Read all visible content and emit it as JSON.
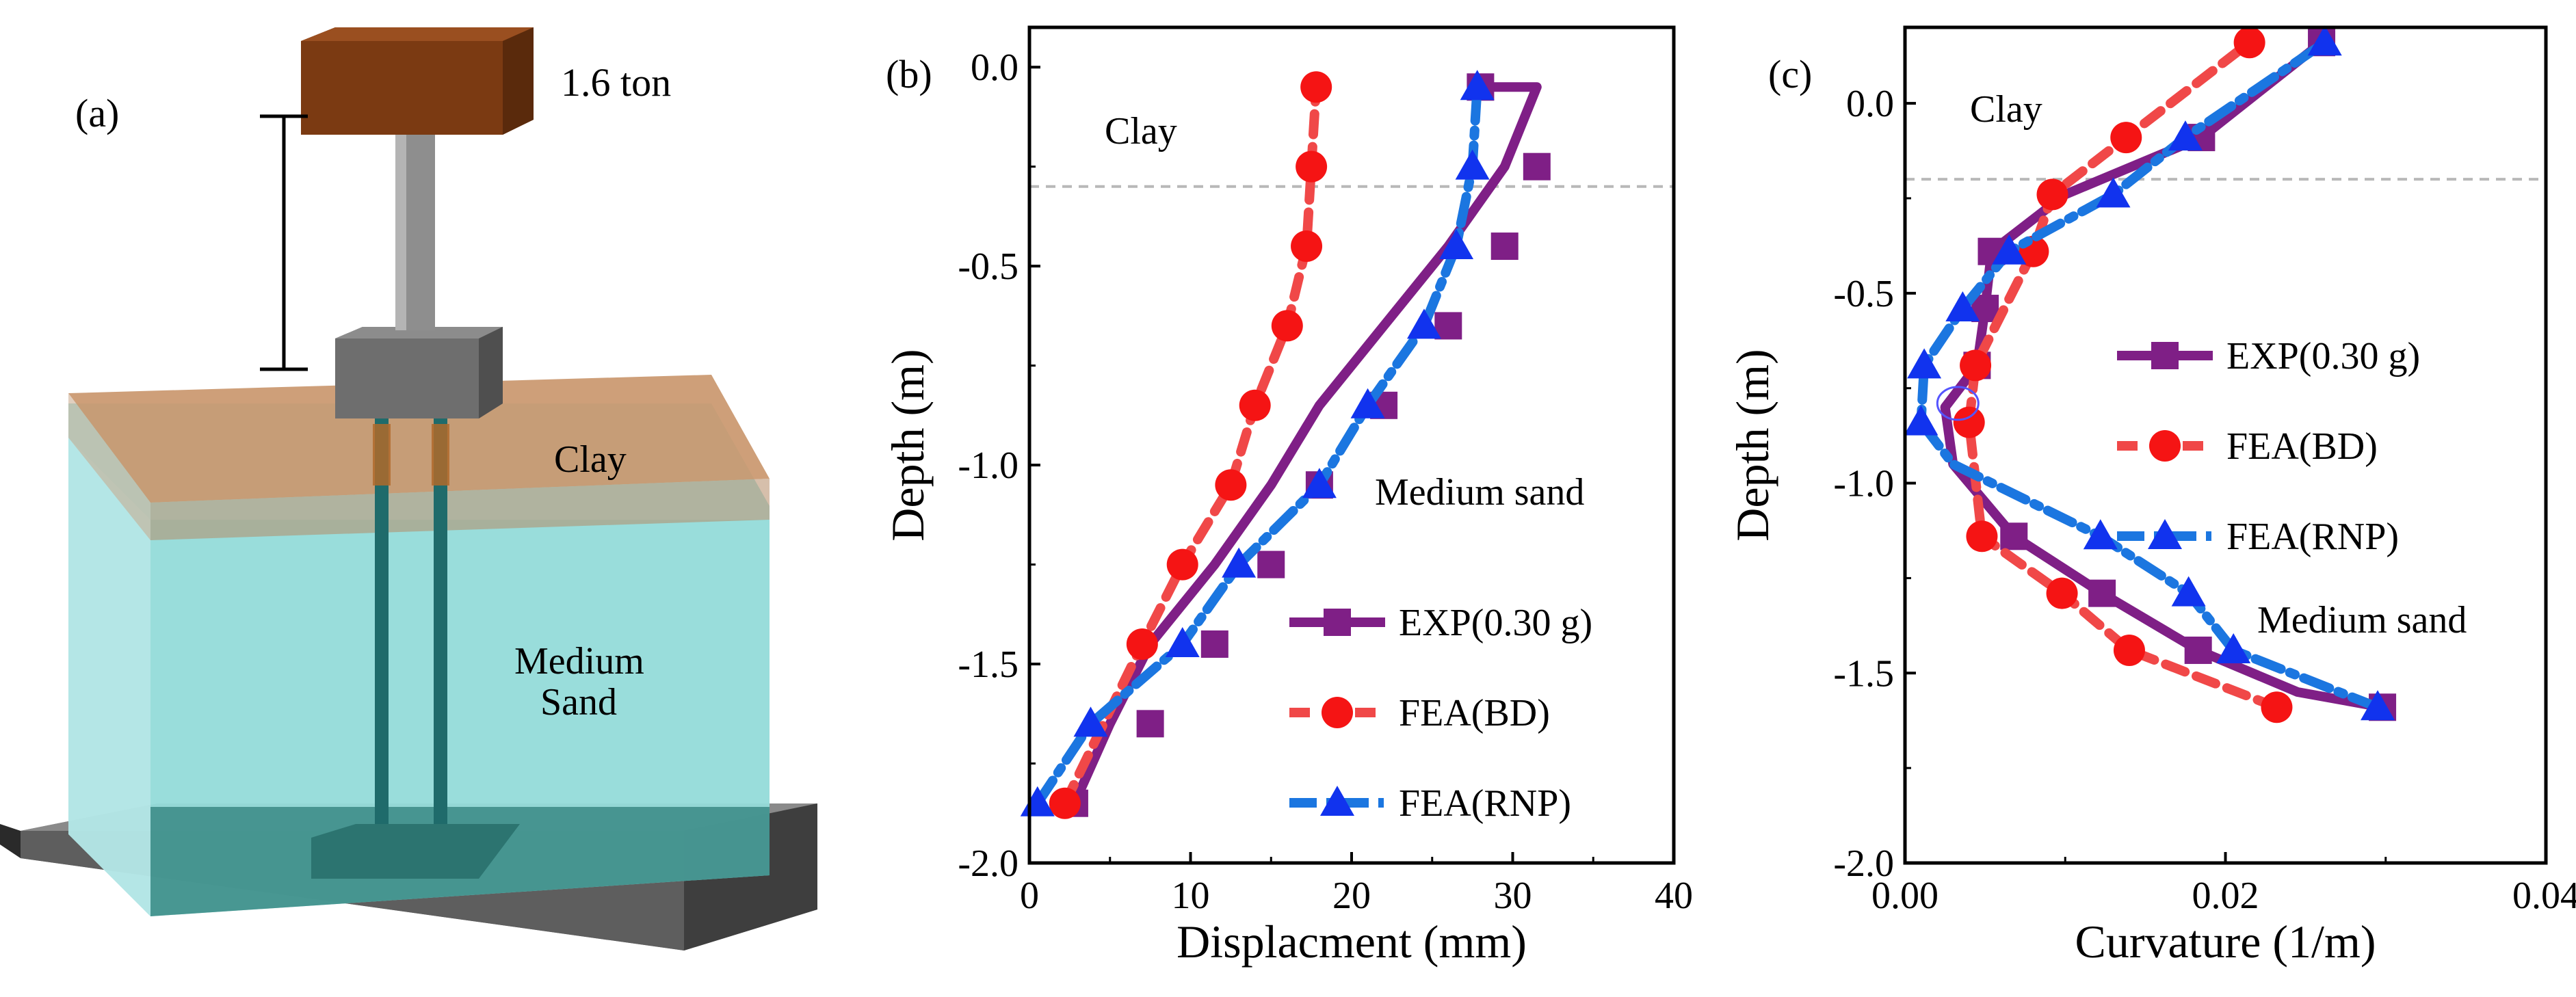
{
  "figure": {
    "panel_a": {
      "label": "(a)",
      "load_label": "1.6 ton",
      "clay_label": "Clay",
      "sand_label_line1": "Medium",
      "sand_label_line2": "Sand"
    }
  },
  "colors": {
    "exp": "#7f1f86",
    "bd": "#f04848",
    "rnp": "#1b76e0",
    "bd_marker": "#f51414",
    "rnp_marker": "#1133ee",
    "clay_layer": "#c9956a",
    "sand_layer": "#98dcdc",
    "mass": "#7b3a12",
    "base": "#5a5a5a"
  },
  "chart_data": [
    {
      "type": "line",
      "panel_label": "(b)",
      "xlabel": "Displacment (mm)",
      "ylabel": "Depth (m)",
      "xlim": [
        0,
        40
      ],
      "ylim": [
        -2.0,
        0.1
      ],
      "xticks": [
        0,
        10,
        20,
        30,
        40
      ],
      "yticks": [
        0.0,
        -0.5,
        -1.0,
        -1.5,
        -2.0
      ],
      "xtick_labels": [
        "0",
        "10",
        "20",
        "30",
        "40"
      ],
      "ytick_labels": [
        "0.0",
        "-0.5",
        "-1.0",
        "-1.5",
        "-2.0"
      ],
      "boundary_depth": -0.3,
      "region_labels": [
        "Clay",
        "Medium sand"
      ],
      "legend": [
        "EXP(0.30 g)",
        "FEA(BD)",
        "FEA(RNP)"
      ],
      "series": [
        {
          "name": "EXP(0.30 g)",
          "marker": "square",
          "x": [
            2.8,
            5.0,
            7.5,
            11.5,
            15.0,
            18.0,
            22.0,
            26.0,
            29.5,
            31.5,
            28.0
          ],
          "y": [
            -1.85,
            -1.65,
            -1.45,
            -1.25,
            -1.05,
            -0.85,
            -0.65,
            -0.45,
            -0.25,
            -0.05,
            -0.05
          ],
          "marker_x": [
            2.8,
            7.5,
            11.5,
            15.0,
            18.0,
            22.0,
            26.0,
            29.5,
            31.5,
            28.0
          ],
          "marker_y": [
            -1.85,
            -1.65,
            -1.45,
            -1.25,
            -1.05,
            -0.85,
            -0.65,
            -0.45,
            -0.25,
            -0.05
          ]
        },
        {
          "name": "FEA(BD)",
          "marker": "circle",
          "x": [
            2.2,
            7.0,
            9.5,
            12.5,
            14.0,
            16.0,
            17.2,
            17.5,
            17.8
          ],
          "y": [
            -1.85,
            -1.45,
            -1.25,
            -1.05,
            -0.85,
            -0.65,
            -0.45,
            -0.25,
            -0.05
          ],
          "marker_x": [
            2.2,
            7.0,
            9.5,
            12.5,
            14.0,
            16.0,
            17.2,
            17.5,
            17.8
          ],
          "marker_y": [
            -1.85,
            -1.45,
            -1.25,
            -1.05,
            -0.85,
            -0.65,
            -0.45,
            -0.25,
            -0.05
          ]
        },
        {
          "name": "FEA(RNP)",
          "marker": "triangle",
          "x": [
            0.5,
            3.8,
            9.5,
            13.0,
            18.0,
            21.0,
            24.5,
            26.5,
            27.5,
            27.8
          ],
          "y": [
            -1.85,
            -1.65,
            -1.45,
            -1.25,
            -1.05,
            -0.85,
            -0.65,
            -0.45,
            -0.25,
            -0.05
          ],
          "marker_x": [
            0.5,
            3.8,
            9.5,
            13.0,
            18.0,
            21.0,
            24.5,
            26.5,
            27.5,
            27.8
          ],
          "marker_y": [
            -1.85,
            -1.65,
            -1.45,
            -1.25,
            -1.05,
            -0.85,
            -0.65,
            -0.45,
            -0.25,
            -0.05
          ]
        }
      ]
    },
    {
      "type": "line",
      "panel_label": "(c)",
      "xlabel": "Curvature (1/m)",
      "ylabel": "Depth (m)",
      "xlim": [
        0.0,
        0.04
      ],
      "ylim": [
        -2.0,
        0.2
      ],
      "xticks": [
        0.0,
        0.02,
        0.04
      ],
      "yticks": [
        0.0,
        -0.5,
        -1.0,
        -1.5,
        -2.0
      ],
      "xtick_labels": [
        "0.00",
        "0.02",
        "0.04"
      ],
      "ytick_labels": [
        "0.0",
        "-0.5",
        "-1.0",
        "-1.5",
        "-2.0"
      ],
      "boundary_depth": -0.2,
      "region_labels": [
        "Clay",
        "Medium sand"
      ],
      "legend": [
        "EXP(0.30 g)",
        "FEA(BD)",
        "FEA(RNP)"
      ],
      "series": [
        {
          "name": "EXP(0.30 g)",
          "marker": "square",
          "x": [
            0.0298,
            0.0245,
            0.0183,
            0.0123,
            0.0068,
            0.003,
            0.0025,
            0.0045,
            0.005,
            0.0054,
            0.01,
            0.0185,
            0.026
          ],
          "y": [
            -1.59,
            -1.55,
            -1.44,
            -1.29,
            -1.14,
            -0.95,
            -0.8,
            -0.69,
            -0.54,
            -0.39,
            -0.24,
            -0.09,
            0.16
          ],
          "marker_x": [
            0.0298,
            0.0183,
            0.0123,
            0.0068,
            0.0045,
            0.005,
            0.0054,
            0.0185,
            0.026
          ],
          "marker_y": [
            -1.59,
            -1.44,
            -1.29,
            -1.14,
            -0.69,
            -0.54,
            -0.39,
            -0.09,
            0.16
          ]
        },
        {
          "name": "FEA(BD)",
          "marker": "circle",
          "x": [
            0.0232,
            0.014,
            0.0098,
            0.0048,
            0.004,
            0.0044,
            0.008,
            0.0092,
            0.0138,
            0.0215
          ],
          "y": [
            -1.59,
            -1.44,
            -1.29,
            -1.14,
            -0.84,
            -0.69,
            -0.39,
            -0.24,
            -0.09,
            0.16
          ],
          "marker_x": [
            0.0232,
            0.014,
            0.0098,
            0.0048,
            0.004,
            0.0044,
            0.008,
            0.0092,
            0.0138,
            0.0215
          ],
          "marker_y": [
            -1.59,
            -1.44,
            -1.29,
            -1.14,
            -0.84,
            -0.69,
            -0.39,
            -0.24,
            -0.09,
            0.16
          ]
        },
        {
          "name": "FEA(RNP)",
          "marker": "triangle",
          "x": [
            0.0295,
            0.0205,
            0.0177,
            0.0122,
            0.003,
            0.001,
            0.0012,
            0.0036,
            0.0065,
            0.013,
            0.0175,
            0.0262
          ],
          "y": [
            -1.59,
            -1.44,
            -1.29,
            -1.14,
            -0.95,
            -0.84,
            -0.69,
            -0.54,
            -0.39,
            -0.24,
            -0.09,
            0.16
          ],
          "marker_x": [
            0.0295,
            0.0205,
            0.0177,
            0.0122,
            0.001,
            0.0012,
            0.0036,
            0.0065,
            0.013,
            0.0175,
            0.0262
          ],
          "marker_y": [
            -1.59,
            -1.44,
            -1.29,
            -1.14,
            -0.84,
            -0.69,
            -0.54,
            -0.39,
            -0.24,
            -0.09,
            0.16
          ]
        }
      ]
    }
  ]
}
